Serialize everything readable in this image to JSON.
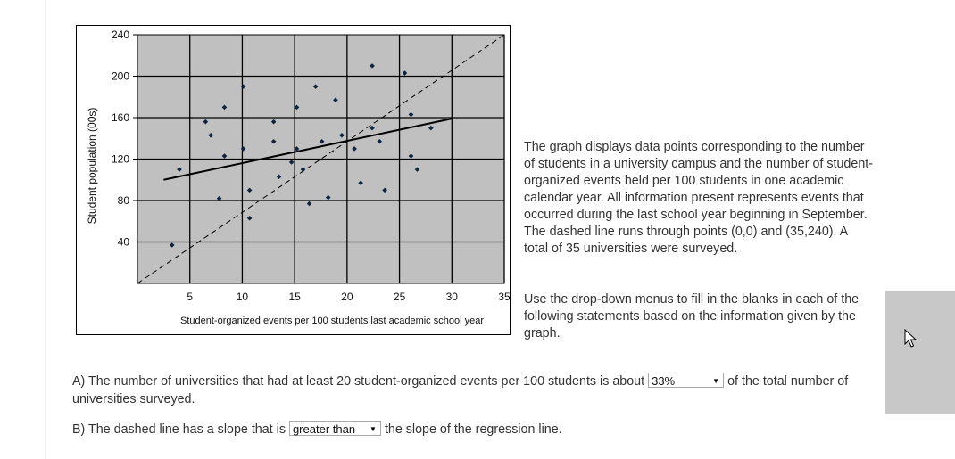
{
  "chart_data": {
    "type": "scatter",
    "title": "",
    "xlabel": "Student-organized events per 100 students last academic school year",
    "ylabel": "Student population (00s)",
    "xlim": [
      0,
      35
    ],
    "ylim": [
      0,
      240
    ],
    "x_ticks": [
      5,
      10,
      15,
      20,
      25,
      30,
      35
    ],
    "y_ticks": [
      40,
      80,
      120,
      160,
      200,
      240
    ],
    "grid": true,
    "points": [
      {
        "x": 3.3,
        "y": 37
      },
      {
        "x": 4.0,
        "y": 110
      },
      {
        "x": 6.5,
        "y": 156
      },
      {
        "x": 7.0,
        "y": 143
      },
      {
        "x": 7.8,
        "y": 82
      },
      {
        "x": 8.3,
        "y": 170
      },
      {
        "x": 8.3,
        "y": 123
      },
      {
        "x": 10.1,
        "y": 190
      },
      {
        "x": 10.1,
        "y": 130
      },
      {
        "x": 10.7,
        "y": 90
      },
      {
        "x": 10.7,
        "y": 63
      },
      {
        "x": 13.0,
        "y": 156
      },
      {
        "x": 13.0,
        "y": 137
      },
      {
        "x": 13.5,
        "y": 103
      },
      {
        "x": 14.7,
        "y": 117
      },
      {
        "x": 15.2,
        "y": 170
      },
      {
        "x": 15.2,
        "y": 130
      },
      {
        "x": 15.8,
        "y": 110
      },
      {
        "x": 16.4,
        "y": 77
      },
      {
        "x": 17.0,
        "y": 190
      },
      {
        "x": 17.6,
        "y": 137
      },
      {
        "x": 18.2,
        "y": 83
      },
      {
        "x": 18.9,
        "y": 177
      },
      {
        "x": 19.5,
        "y": 143
      },
      {
        "x": 20.7,
        "y": 130
      },
      {
        "x": 21.3,
        "y": 97
      },
      {
        "x": 22.4,
        "y": 210
      },
      {
        "x": 22.4,
        "y": 150
      },
      {
        "x": 23.1,
        "y": 137
      },
      {
        "x": 23.6,
        "y": 90
      },
      {
        "x": 25.5,
        "y": 203
      },
      {
        "x": 26.1,
        "y": 163
      },
      {
        "x": 26.1,
        "y": 123
      },
      {
        "x": 26.7,
        "y": 110
      },
      {
        "x": 28.0,
        "y": 150
      }
    ],
    "regression_line": {
      "x1": 2.5,
      "y1": 100,
      "x2": 30.0,
      "y2": 159,
      "style": "solid"
    },
    "reference_line": {
      "x1": 0,
      "y1": 0,
      "x2": 35,
      "y2": 240,
      "style": "dashed"
    },
    "colors": {
      "plot_background": "#c0c0c0",
      "grid": "#000000",
      "points": "#0d2340",
      "lines": "#000000"
    }
  },
  "description": "The graph displays data points corresponding to the number of students in a university campus and the number of student-organized events held per 100 students in one academic calendar year. All information present represents events that occurred during the last school year beginning in September. The dashed line runs through points (0,0) and (35,240). A total of 35 universities were surveyed.",
  "instructions": "Use the drop-down menus to fill in the blanks in each of the following statements based on the information given by the graph.",
  "question_a": {
    "before": "A) The number of universities that had at least 20 student-organized events per 100 students is about",
    "selected": "33%",
    "after": "of the total number of universities surveyed."
  },
  "question_b": {
    "before": "B) The dashed line has a slope that is",
    "selected": "greater than",
    "after": "the slope of the regression line."
  },
  "icons": {
    "dropdown_arrow": "▼",
    "cursor": "mouse-pointer-icon"
  }
}
